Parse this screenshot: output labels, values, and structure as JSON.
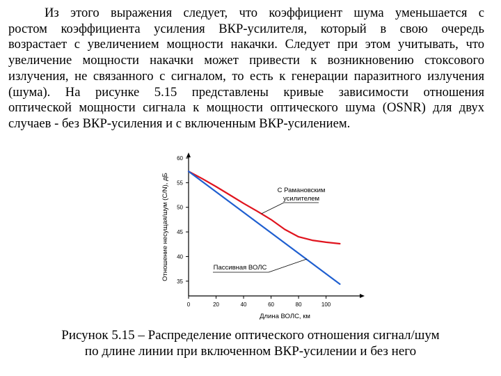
{
  "paragraph": {
    "lines": [
      "Из этого выражения следует, что коэффициент шума уменьшается с",
      "ростом коэффициента усиления ВКР-усилителя, который в свою очередь",
      "возрастает с увеличением мощности накачки. Следует при этом учитывать, что",
      "увеличение мощности накачки может привести к возникновению стоксового",
      "излучения, не связанного с сигналом, то есть к генерации паразитного излучения",
      "(шума). На рисунке 5.15 представлены кривые зависимости отношения",
      "оптической мощности сигнала к мощности оптического шума (OSNR) для двух",
      "случаев - без ВКР-усиления и с включенным ВКР-усилением."
    ]
  },
  "chart_data": {
    "type": "line",
    "xlabel": "Длина ВОЛС, км",
    "ylabel": "Отношение несущая/шум (С/N), дБ",
    "xlim": [
      0,
      125
    ],
    "ylim": [
      32,
      60
    ],
    "x_ticks": [
      0,
      20,
      40,
      60,
      80,
      100
    ],
    "y_ticks": [
      35,
      40,
      45,
      50,
      55,
      60
    ],
    "series": [
      {
        "name": "С Рамановским усилителем",
        "label_lines": [
          "С Рамановским",
          "усилителем"
        ],
        "color": "#e0141e",
        "x": [
          0,
          10,
          20,
          30,
          40,
          50,
          60,
          70,
          80,
          90,
          100,
          110
        ],
        "y": [
          57.3,
          55.8,
          54.2,
          52.5,
          50.8,
          49.2,
          47.5,
          45.5,
          44.0,
          43.3,
          42.9,
          42.6
        ]
      },
      {
        "name": "Пассивная ВОЛС",
        "label_lines": [
          "Пассивная ВОЛС"
        ],
        "color": "#1f5fd0",
        "x": [
          0,
          110
        ],
        "y": [
          57.3,
          34.4
        ]
      }
    ]
  },
  "caption": {
    "line1": "Рисунок 5.15 – Распределение оптического отношения сигнал/шум",
    "line2": "по длине линии при включенном ВКР-усилении и без него"
  }
}
